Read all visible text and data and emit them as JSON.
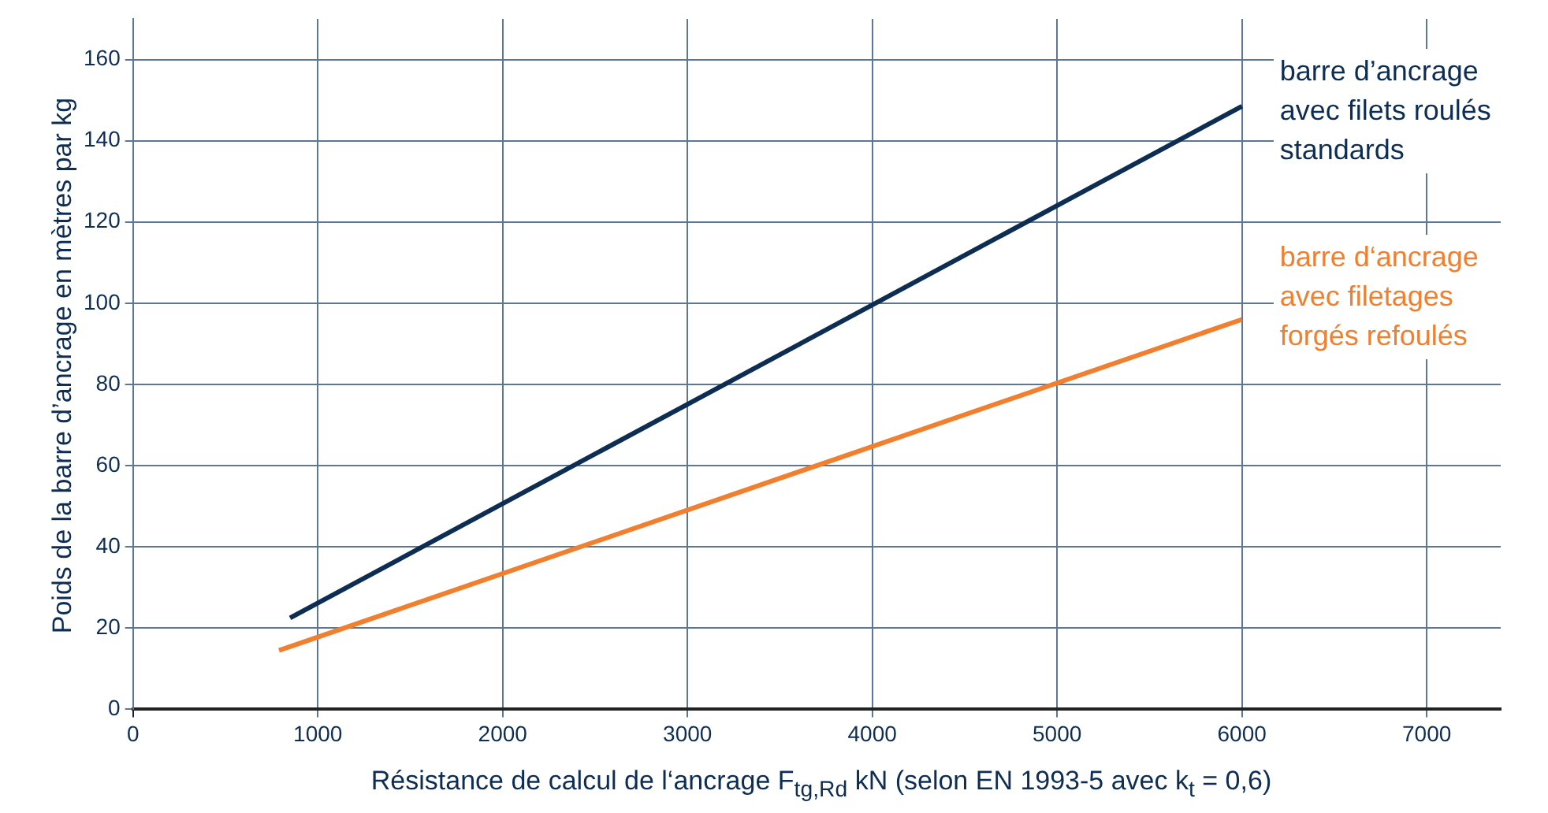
{
  "chart_data": {
    "type": "line",
    "xlabel": "Résistance de calcul de l‘ancrage F$_{tg,Rd}$ kN (selon EN 1993-5 avec k$_{t}$ = 0,6)",
    "ylabel": "Poids de la barre d’ancrage en mètres par kg",
    "series": [
      {
        "name": "barre d’ancrage avec filets roulés standards",
        "color": "#0d2d52",
        "x": [
          850,
          6000
        ],
        "values": [
          22.5,
          148.5
        ]
      },
      {
        "name": "barre d‘ancrage avec filetages forgés refoulés",
        "color": "#f0802f",
        "x": [
          790,
          6000
        ],
        "values": [
          14.5,
          96
        ]
      }
    ],
    "xlim": [
      0,
      7400
    ],
    "xticks": [
      0,
      1000,
      2000,
      3000,
      4000,
      5000,
      6000,
      7000
    ],
    "ylim": [
      0,
      170
    ],
    "yticks": [
      0,
      20,
      40,
      60,
      80,
      100,
      120,
      140,
      160
    ],
    "grid": true,
    "legend": false,
    "marker": "none",
    "line_style": "solid"
  }
}
